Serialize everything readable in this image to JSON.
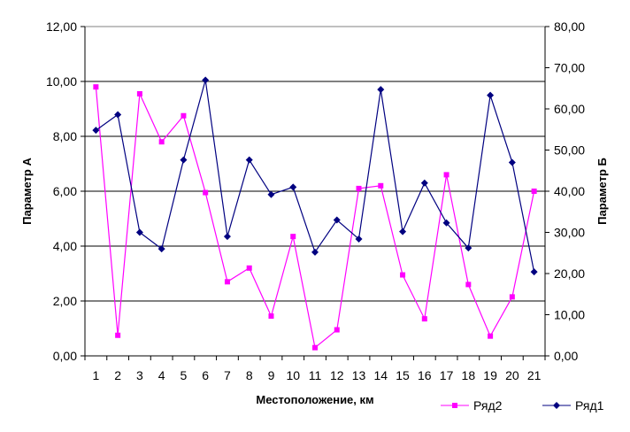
{
  "chart_data": {
    "type": "line",
    "xlabel": "Местоположение, км",
    "ylabel_left": "Параметр А",
    "ylabel_right": "Параметр Б",
    "categories": [
      "1",
      "2",
      "3",
      "4",
      "5",
      "6",
      "7",
      "8",
      "9",
      "10",
      "11",
      "12",
      "13",
      "14",
      "15",
      "16",
      "17",
      "18",
      "19",
      "20",
      "21"
    ],
    "y_left": {
      "min": 0,
      "max": 12,
      "step": 2,
      "ticks": [
        "0,00",
        "2,00",
        "4,00",
        "6,00",
        "8,00",
        "10,00",
        "12,00"
      ]
    },
    "y_right": {
      "min": 0,
      "max": 80,
      "step": 10,
      "ticks": [
        "0,00",
        "10,00",
        "20,00",
        "30,00",
        "40,00",
        "50,00",
        "60,00",
        "70,00",
        "80,00"
      ]
    },
    "grid": true,
    "legend_position": "bottom-right",
    "series": [
      {
        "name": "Ряд2",
        "axis": "left",
        "color": "#ff00ff",
        "marker": "square",
        "values": [
          9.8,
          0.75,
          9.55,
          7.8,
          8.75,
          5.95,
          2.7,
          3.2,
          1.45,
          4.35,
          0.3,
          0.95,
          6.1,
          6.2,
          2.95,
          1.35,
          6.6,
          2.6,
          0.72,
          2.15,
          6.0
        ]
      },
      {
        "name": "Ряд1",
        "axis": "right",
        "color": "#000080",
        "marker": "diamond",
        "values": [
          54.8,
          58.6,
          30.0,
          26.0,
          47.6,
          67.0,
          29.0,
          47.6,
          39.2,
          41.0,
          25.2,
          33.0,
          28.4,
          64.7,
          30.2,
          42.0,
          32.3,
          26.2,
          63.3,
          47.0,
          20.4
        ]
      }
    ]
  }
}
